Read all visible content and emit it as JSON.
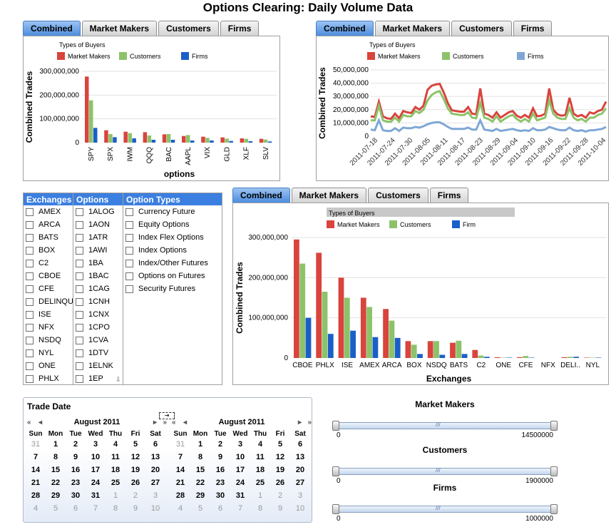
{
  "page_title": "Options Clearing: Daily Volume Data",
  "tabs": [
    "Combined",
    "Market Makers",
    "Customers",
    "Firms"
  ],
  "colors": {
    "market_makers": "#d9443d",
    "customers": "#8cc36a",
    "firms": "#1a5fc8",
    "firms_line": "#7fa7d6",
    "tab_blue": "#4d8ddd"
  },
  "chart_data": [
    {
      "type": "bar",
      "legend_title": "Types of Buyers",
      "legend_placement": "top",
      "ylabel": "Combined Trades",
      "xlabel": "options",
      "yticks": [
        "0",
        "100,000,000",
        "200,000,000",
        "300,000,000"
      ],
      "ylim": [
        0,
        300000000
      ],
      "categories": [
        "SPY",
        "SPX",
        "IWM",
        "QQQ",
        "BAC",
        "AAPL",
        "VIX",
        "GLD",
        "XLF",
        "SLV"
      ],
      "series": [
        {
          "name": "Market Makers",
          "values": [
            278000000,
            52000000,
            46000000,
            44000000,
            35000000,
            28000000,
            25000000,
            22000000,
            18000000,
            16000000
          ]
        },
        {
          "name": "Customers",
          "values": [
            178000000,
            36000000,
            40000000,
            30000000,
            36000000,
            32000000,
            20000000,
            17000000,
            16000000,
            13000000
          ]
        },
        {
          "name": "Firms",
          "values": [
            62000000,
            23000000,
            18000000,
            12000000,
            12000000,
            9000000,
            9000000,
            7000000,
            6000000,
            5000000
          ]
        }
      ]
    },
    {
      "type": "line",
      "legend_title": "Types of Buyers",
      "legend_placement": "top",
      "ylabel": "Combined Trades",
      "yticks": [
        "0",
        "10,000,000",
        "20,000,000",
        "30,000,000",
        "40,000,000",
        "50,000,000"
      ],
      "ylim": [
        0,
        50000000
      ],
      "x_labels": [
        "2011-07-18",
        "2011-07-24",
        "2011-07-30",
        "2011-08-05",
        "2011-08-11",
        "2011-08-17",
        "2011-08-23",
        "2011-08-29",
        "2011-09-04",
        "2011-09-10",
        "2011-09-16",
        "2011-09-22",
        "2011-09-28",
        "2011-10-04"
      ],
      "series": [
        {
          "name": "Market Makers",
          "values": [
            15000000,
            14500000,
            26000000,
            15000000,
            13500000,
            13000000,
            17000000,
            13500000,
            19000000,
            18000000,
            17500000,
            22000000,
            20000000,
            23000000,
            35000000,
            38000000,
            39000000,
            39500000,
            33000000,
            25000000,
            19500000,
            19000000,
            18500000,
            18500000,
            22000000,
            17000000,
            16500000,
            36000000,
            17000000,
            16000000,
            14000000,
            18000000,
            14000000,
            16000000,
            18000000,
            19000000,
            15500000,
            14000000,
            16000000,
            14000000,
            21000000,
            15000000,
            15500000,
            17000000,
            36000000,
            20000000,
            16500000,
            15500000,
            16000000,
            29000000,
            17000000,
            15000000,
            16000000,
            14000000,
            18000000,
            17000000,
            19000000,
            20000000,
            26000000
          ]
        },
        {
          "name": "Customers",
          "values": [
            12000000,
            12000000,
            23000000,
            12000000,
            11000000,
            11000000,
            14000000,
            11000000,
            16000000,
            15000000,
            15000000,
            19000000,
            17500000,
            20000000,
            27000000,
            31000000,
            33000000,
            34000000,
            28000000,
            21000000,
            17000000,
            16500000,
            16000000,
            16000000,
            18000000,
            14000000,
            13500000,
            25000000,
            14000000,
            13000000,
            11000000,
            15000000,
            11000000,
            13000000,
            15000000,
            16000000,
            13000000,
            11000000,
            13000000,
            11000000,
            17000000,
            12000000,
            13000000,
            14000000,
            27000000,
            17000000,
            14000000,
            13000000,
            13000000,
            21000000,
            14000000,
            12000000,
            13000000,
            11000000,
            14000000,
            14000000,
            16000000,
            17000000,
            21000000
          ]
        },
        {
          "name": "Firms",
          "values": [
            5000000,
            4500000,
            12000000,
            4500000,
            4000000,
            4000000,
            6000000,
            4000000,
            6500000,
            6000000,
            6000000,
            7000000,
            6500000,
            7500000,
            9000000,
            10000000,
            10500000,
            10500000,
            9000000,
            7000000,
            5500000,
            5500000,
            5500000,
            5500000,
            6500000,
            5000000,
            5000000,
            12000000,
            5000000,
            4500000,
            4000000,
            5500000,
            4000000,
            4500000,
            5000000,
            5500000,
            4500000,
            4000000,
            4500000,
            4000000,
            6000000,
            4500000,
            4500000,
            5000000,
            7000000,
            6000000,
            5000000,
            4500000,
            4500000,
            6500000,
            4500000,
            4000000,
            4500000,
            3500000,
            4500000,
            4500000,
            5000000,
            5500000,
            7000000
          ]
        }
      ]
    },
    {
      "type": "bar",
      "legend_title": "Types of Buyers",
      "legend_placement": "top",
      "ylabel": "Combined Trades",
      "xlabel": "Exchanges",
      "yticks": [
        "0",
        "100,000,000",
        "200,000,000",
        "300,000,000"
      ],
      "ylim": [
        0,
        300000000
      ],
      "categories": [
        "CBOE",
        "PHLX",
        "ISE",
        "AMEX",
        "ARCA",
        "BOX",
        "NSDQ",
        "BATS",
        "C2",
        "ONE",
        "CFE",
        "NFX",
        "DELI..",
        "NYL"
      ],
      "series": [
        {
          "name": "Market Makers",
          "values": [
            295000000,
            262000000,
            200000000,
            150000000,
            122000000,
            42000000,
            42000000,
            38000000,
            20000000,
            2000000,
            2000000,
            0,
            2000000,
            1000000
          ]
        },
        {
          "name": "Customers",
          "values": [
            235000000,
            165000000,
            150000000,
            127000000,
            93000000,
            33000000,
            42000000,
            43000000,
            6000000,
            1000000,
            5000000,
            0,
            3000000,
            1000000
          ]
        },
        {
          "name": "Firm",
          "values": [
            100000000,
            60000000,
            68000000,
            52000000,
            50000000,
            10000000,
            8000000,
            10000000,
            3000000,
            1000000,
            1000000,
            0,
            3000000,
            1000000
          ]
        }
      ]
    }
  ],
  "filters": {
    "exchanges": {
      "header": "Exchanges",
      "items": [
        "AMEX",
        "ARCA",
        "BATS",
        "BOX",
        "C2",
        "CBOE",
        "CFE",
        "DELINQUI",
        "ISE",
        "NFX",
        "NSDQ",
        "NYL",
        "ONE",
        "PHLX"
      ]
    },
    "options": {
      "header": "Options",
      "items": [
        "1ALOG",
        "1AON",
        "1ATR",
        "1AWI",
        "1BA",
        "1BAC",
        "1CAG",
        "1CNH",
        "1CNX",
        "1CPO",
        "1CVA",
        "1DTV",
        "1ELNK",
        "1EP"
      ]
    },
    "option_types": {
      "header": "Option Types",
      "items": [
        "Currency Future",
        "Equity Options",
        "Index Flex Options",
        "Index Options",
        "Index/Other Futures",
        "Options on Futures",
        "Security Futures"
      ]
    }
  },
  "calendar": {
    "title": "Trade Date",
    "weekdays": [
      "Sun",
      "Mon",
      "Tue",
      "Wed",
      "Thu",
      "Fri",
      "Sat"
    ],
    "months": [
      {
        "label": "August 2011",
        "weeks": [
          [
            "31",
            "1",
            "2",
            "3",
            "4",
            "5",
            "6"
          ],
          [
            "7",
            "8",
            "9",
            "10",
            "11",
            "12",
            "13"
          ],
          [
            "14",
            "15",
            "16",
            "17",
            "18",
            "19",
            "20"
          ],
          [
            "21",
            "22",
            "23",
            "24",
            "25",
            "26",
            "27"
          ],
          [
            "28",
            "29",
            "30",
            "31",
            "1",
            "2",
            "3"
          ],
          [
            "4",
            "5",
            "6",
            "7",
            "8",
            "9",
            "10"
          ]
        ]
      },
      {
        "label": "August 2011",
        "weeks": [
          [
            "31",
            "1",
            "2",
            "3",
            "4",
            "5",
            "6"
          ],
          [
            "7",
            "8",
            "9",
            "10",
            "11",
            "12",
            "13"
          ],
          [
            "14",
            "15",
            "16",
            "17",
            "18",
            "19",
            "20"
          ],
          [
            "21",
            "22",
            "23",
            "24",
            "25",
            "26",
            "27"
          ],
          [
            "28",
            "29",
            "30",
            "31",
            "1",
            "2",
            "3"
          ],
          [
            "4",
            "5",
            "6",
            "7",
            "8",
            "9",
            "10"
          ]
        ]
      }
    ]
  },
  "sliders": [
    {
      "title": "Market Makers",
      "min": "0",
      "max": "14500000"
    },
    {
      "title": "Customers",
      "min": "0",
      "max": "1900000"
    },
    {
      "title": "Firms",
      "min": "0",
      "max": "1000000"
    }
  ]
}
